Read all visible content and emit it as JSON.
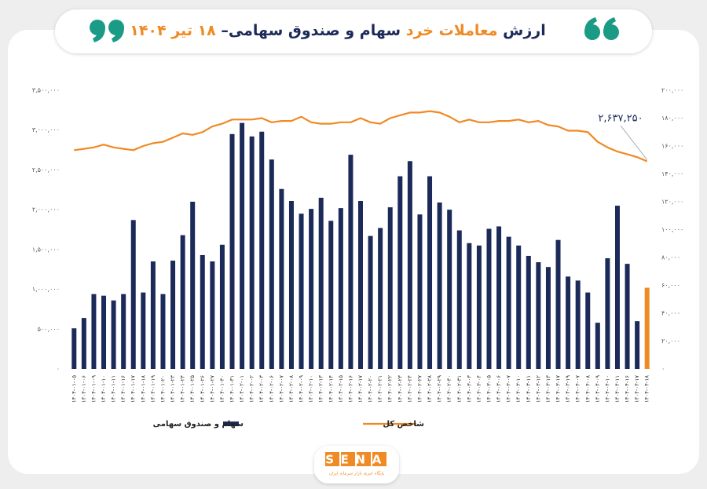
{
  "chart_data": {
    "type": "bar_line",
    "title": [
      {
        "text": "ارزش",
        "color": "#1c2a5a"
      },
      {
        "text": "معاملات خرد",
        "color": "#f08a24"
      },
      {
        "text": "سهام و صندوق سهامی–",
        "color": "#1c2a5a"
      },
      {
        "text": "۱۸ تیر ۱۴۰۴",
        "color": "#f08a24"
      }
    ],
    "categories": [
      "۱۴۰۴-۰۱-۰۵",
      "۱۴۰۴-۰۱-۰۶",
      "۱۴۰۴-۰۱-۰۹",
      "۱۴۰۴-۰۱-۱۰",
      "۱۴۰۴-۰۱-۱۱",
      "۱۴۰۴-۰۱-۱۶",
      "۱۴۰۴-۰۱-۱۷",
      "۱۴۰۴-۰۱-۱۸",
      "۱۴۰۴-۰۱-۱۹",
      "۱۴۰۴-۰۱-۲۰",
      "۱۴۰۴-۰۱-۲۳",
      "۱۴۰۴-۰۱-۲۴",
      "۱۴۰۴-۰۱-۲۵",
      "۱۴۰۴-۰۱-۲۶",
      "۱۴۰۴-۰۱-۲۷",
      "۱۴۰۴-۰۱-۳۰",
      "۱۴۰۴-۰۱-۳۱",
      "۱۴۰۴-۰۲-۰۱",
      "۱۴۰۴-۰۲-۰۲",
      "۱۴۰۴-۰۲-۰۳",
      "۱۴۰۴-۰۲-۰۶",
      "۱۴۰۴-۰۲-۰۷",
      "۱۴۰۴-۰۲-۰۸",
      "۱۴۰۴-۰۲-۰۹",
      "۱۴۰۴-۰۲-۱۰",
      "۱۴۰۴-۰۲-۱۳",
      "۱۴۰۴-۰۲-۱۴",
      "۱۴۰۴-۰۲-۱۵",
      "۱۴۰۴-۰۲-۱۶",
      "۱۴۰۴-۰۲-۱۷",
      "۱۴۰۴-۰۲-۲۰",
      "۱۴۰۴-۰۲-۲۱",
      "۱۴۰۴-۰۲-۲۲",
      "۱۴۰۴-۰۲-۲۳",
      "۱۴۰۴-۰۲-۲۴",
      "۱۴۰۴-۰۲-۲۷",
      "۱۴۰۴-۰۲-۲۸",
      "۱۴۰۴-۰۲-۲۹",
      "۱۴۰۴-۰۲-۳۰",
      "۱۴۰۴-۰۲-۳۱",
      "۱۴۰۴-۰۳-۰۳",
      "۱۴۰۴-۰۳-۰۴",
      "۱۴۰۴-۰۳-۰۵",
      "۱۴۰۴-۰۳-۰۶",
      "۱۴۰۴-۰۳-۰۷",
      "۱۴۰۴-۰۳-۱۰",
      "۱۴۰۴-۰۳-۱۱",
      "۱۴۰۴-۰۳-۱۲",
      "۱۴۰۴-۰۳-۱۳",
      "۱۴۰۴-۰۳-۱۷",
      "۱۴۰۴-۰۳-۱۹",
      "۱۴۰۴-۰۴-۰۷",
      "۱۴۰۴-۰۴-۰۸",
      "۱۴۰۴-۰۴-۰۹",
      "۱۴۰۴-۰۴-۱۰",
      "۱۴۰۴-۰۴-۱۱",
      "۱۴۰۴-۰۴-۱۶",
      "۱۴۰۴-۰۴-۱۷",
      "۱۴۰۴-۰۴-۱۸"
    ],
    "series": [
      {
        "name": "سهام و صندوق سهامی",
        "type": "bar",
        "color": "#1c2a5a",
        "highlight": {
          "index": 58,
          "color": "#f08a24"
        },
        "values": [
          510000,
          640000,
          940000,
          920000,
          860000,
          940000,
          1870000,
          960000,
          1350000,
          940000,
          1360000,
          1680000,
          2100000,
          1430000,
          1350000,
          1560000,
          2950000,
          3090000,
          2920000,
          2980000,
          2630000,
          2260000,
          2110000,
          1950000,
          2010000,
          2150000,
          1860000,
          2020000,
          2690000,
          2110000,
          1670000,
          1770000,
          2030000,
          2420000,
          2610000,
          1940000,
          2420000,
          2090000,
          2000000,
          1740000,
          1580000,
          1550000,
          1760000,
          1790000,
          1660000,
          1550000,
          1420000,
          1340000,
          1280000,
          1620000,
          1160000,
          1110000,
          960000,
          580000,
          1390000,
          2050000,
          1320000,
          600000,
          1020000
        ]
      },
      {
        "name": "شاخص کل",
        "type": "line",
        "axis": "y2",
        "color": "#f08a24",
        "values": [
          157000,
          158000,
          159000,
          161000,
          159000,
          158000,
          157000,
          160000,
          162000,
          163000,
          166000,
          169000,
          168000,
          170000,
          174000,
          176000,
          179000,
          179000,
          179000,
          180000,
          177000,
          178000,
          178000,
          181000,
          177000,
          176000,
          176000,
          177000,
          177000,
          180000,
          177000,
          176000,
          180000,
          182000,
          184000,
          184000,
          185000,
          184000,
          181000,
          177000,
          179000,
          177000,
          177000,
          178000,
          178000,
          179000,
          177000,
          178000,
          175000,
          174000,
          171000,
          171000,
          170000,
          163000,
          159000,
          156000,
          154000,
          152000,
          149000
        ]
      }
    ],
    "annotation": "۲,۶۳۷,۲۵۰",
    "ylim": [
      0,
      3500000
    ],
    "yticks": [
      {
        "value": 0,
        "label": "۰"
      },
      {
        "value": 500000,
        "label": "۵۰۰,۰۰۰"
      },
      {
        "value": 1000000,
        "label": "۱,۰۰۰,۰۰۰"
      },
      {
        "value": 1500000,
        "label": "۱,۵۰۰,۰۰۰"
      },
      {
        "value": 2000000,
        "label": "۲,۰۰۰,۰۰۰"
      },
      {
        "value": 2500000,
        "label": "۲,۵۰۰,۰۰۰"
      },
      {
        "value": 3000000,
        "label": "۳,۰۰۰,۰۰۰"
      },
      {
        "value": 3500000,
        "label": "۳,۵۰۰,۰۰۰"
      }
    ],
    "y2lim": [
      0,
      200000
    ],
    "y2ticks": [
      {
        "value": 0,
        "label": "۰"
      },
      {
        "value": 20000,
        "label": "۲۰,۰۰۰"
      },
      {
        "value": 40000,
        "label": "۴۰,۰۰۰"
      },
      {
        "value": 60000,
        "label": "۶۰,۰۰۰"
      },
      {
        "value": 80000,
        "label": "۸۰,۰۰۰"
      },
      {
        "value": 100000,
        "label": "۱۰۰,۰۰۰"
      },
      {
        "value": 120000,
        "label": "۱۲۰,۰۰۰"
      },
      {
        "value": 140000,
        "label": "۱۴۰,۰۰۰"
      },
      {
        "value": 160000,
        "label": "۱۶۰,۰۰۰"
      },
      {
        "value": 180000,
        "label": "۱۸۰,۰۰۰"
      },
      {
        "value": 200000,
        "label": "۲۰۰,۰۰۰"
      }
    ],
    "grid": false
  },
  "logo": {
    "text": "SENA",
    "tagline": "پایگاه خبری بازار سرمایه ایران"
  }
}
